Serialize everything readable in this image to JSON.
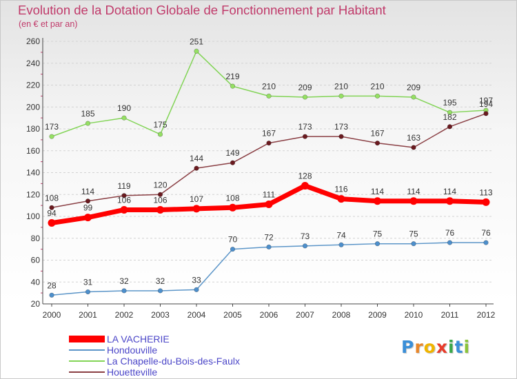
{
  "chart_data": {
    "type": "line",
    "title": "Evolution de la Dotation Globale de Fonctionnement par Habitant",
    "subtitle": "(en € et par an)",
    "x": [
      "2000",
      "2001",
      "2002",
      "2003",
      "2004",
      "2005",
      "2006",
      "2007",
      "2008",
      "2009",
      "2010",
      "2011",
      "2012"
    ],
    "y_ticks": [
      "20",
      "40",
      "60",
      "80",
      "100",
      "120",
      "140",
      "160",
      "180",
      "200",
      "220",
      "240",
      "260"
    ],
    "ylim": [
      20,
      260
    ],
    "grid": "horizontal dashed",
    "legend_position": "bottom-left",
    "series": [
      {
        "name": "La Chapelle-du-Bois-des-Faulx",
        "color": "#82d456",
        "marker": "#95e063",
        "values": [
          173,
          185,
          190,
          175,
          251,
          219,
          210,
          209,
          210,
          210,
          209,
          195,
          197
        ],
        "labels": [
          "173",
          "185",
          "190",
          "175",
          "251",
          "219",
          "210",
          "209",
          "210",
          "210",
          "209",
          "195",
          "197"
        ]
      },
      {
        "name": "Houetteville",
        "color": "#8a3f44",
        "marker": "#6a1a1f",
        "values": [
          108,
          114,
          119,
          120,
          144,
          149,
          167,
          173,
          173,
          167,
          163,
          182,
          194
        ],
        "labels": [
          "108",
          "114",
          "119",
          "120",
          "144",
          "149",
          "167",
          "173",
          "173",
          "167",
          "163",
          "182",
          "194"
        ]
      },
      {
        "name": "LA VACHERIE",
        "color": "#ff0000",
        "marker": "#ff0000",
        "values": [
          94,
          99,
          106,
          106,
          107,
          108,
          111,
          128,
          116,
          114,
          114,
          114,
          113
        ],
        "labels": [
          "94",
          "99",
          "106",
          "106",
          "107",
          "108",
          "111",
          "128",
          "116",
          "114",
          "114",
          "114",
          "113"
        ]
      },
      {
        "name": "Hondouville",
        "color": "#5b95c8",
        "marker": "#4d8fcc",
        "values": [
          28,
          31,
          32,
          32,
          33,
          70,
          72,
          73,
          74,
          75,
          75,
          76,
          76
        ],
        "labels": [
          "28",
          "31",
          "32",
          "32",
          "33",
          "70",
          "72",
          "73",
          "74",
          "75",
          "75",
          "76",
          "76"
        ]
      }
    ]
  },
  "legend": [
    {
      "name": "LA VACHERIE",
      "color": "#ff0000"
    },
    {
      "name": "Hondouville",
      "color": "#5b95c8"
    },
    {
      "name": "La Chapelle-du-Bois-des-Faulx",
      "color": "#82d456"
    },
    {
      "name": "Houetteville",
      "color": "#8a3f44"
    }
  ],
  "logo": {
    "letters": [
      "P",
      "r",
      "o",
      "x",
      "i",
      "t",
      "i"
    ],
    "colors": [
      "#3a8fd8",
      "#e8862a",
      "#f0b400",
      "#e83b2a",
      "#3aa84a",
      "#3a8fd8",
      "#8bc43a"
    ]
  }
}
